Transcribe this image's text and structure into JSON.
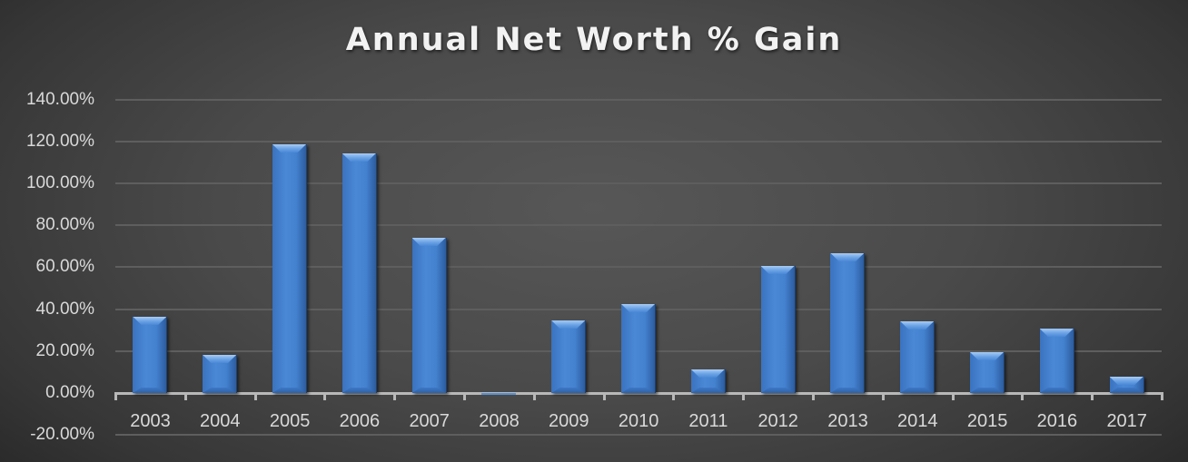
{
  "chart_data": {
    "type": "bar",
    "title": "Annual Net Worth % Gain",
    "xlabel": "",
    "ylabel": "",
    "categories": [
      "2003",
      "2004",
      "2005",
      "2006",
      "2007",
      "2008",
      "2009",
      "2010",
      "2011",
      "2012",
      "2013",
      "2014",
      "2015",
      "2016",
      "2017"
    ],
    "values": [
      36.4,
      18.2,
      118.6,
      114.3,
      74.0,
      -1.0,
      34.6,
      42.4,
      11.3,
      60.6,
      66.7,
      34.2,
      19.5,
      30.7,
      7.8
    ],
    "value_unit": "%",
    "ylim": [
      -20,
      140
    ],
    "yticks": [
      "140.00%",
      "120.00%",
      "100.00%",
      "80.00%",
      "60.00%",
      "40.00%",
      "20.00%",
      "0.00%",
      "-20.00%"
    ],
    "ytick_values": [
      140,
      120,
      100,
      80,
      60,
      40,
      20,
      0,
      -20
    ],
    "grid": true,
    "legend": null,
    "bar_color": "#4a88d6",
    "background_color": "#4a4a4a"
  }
}
